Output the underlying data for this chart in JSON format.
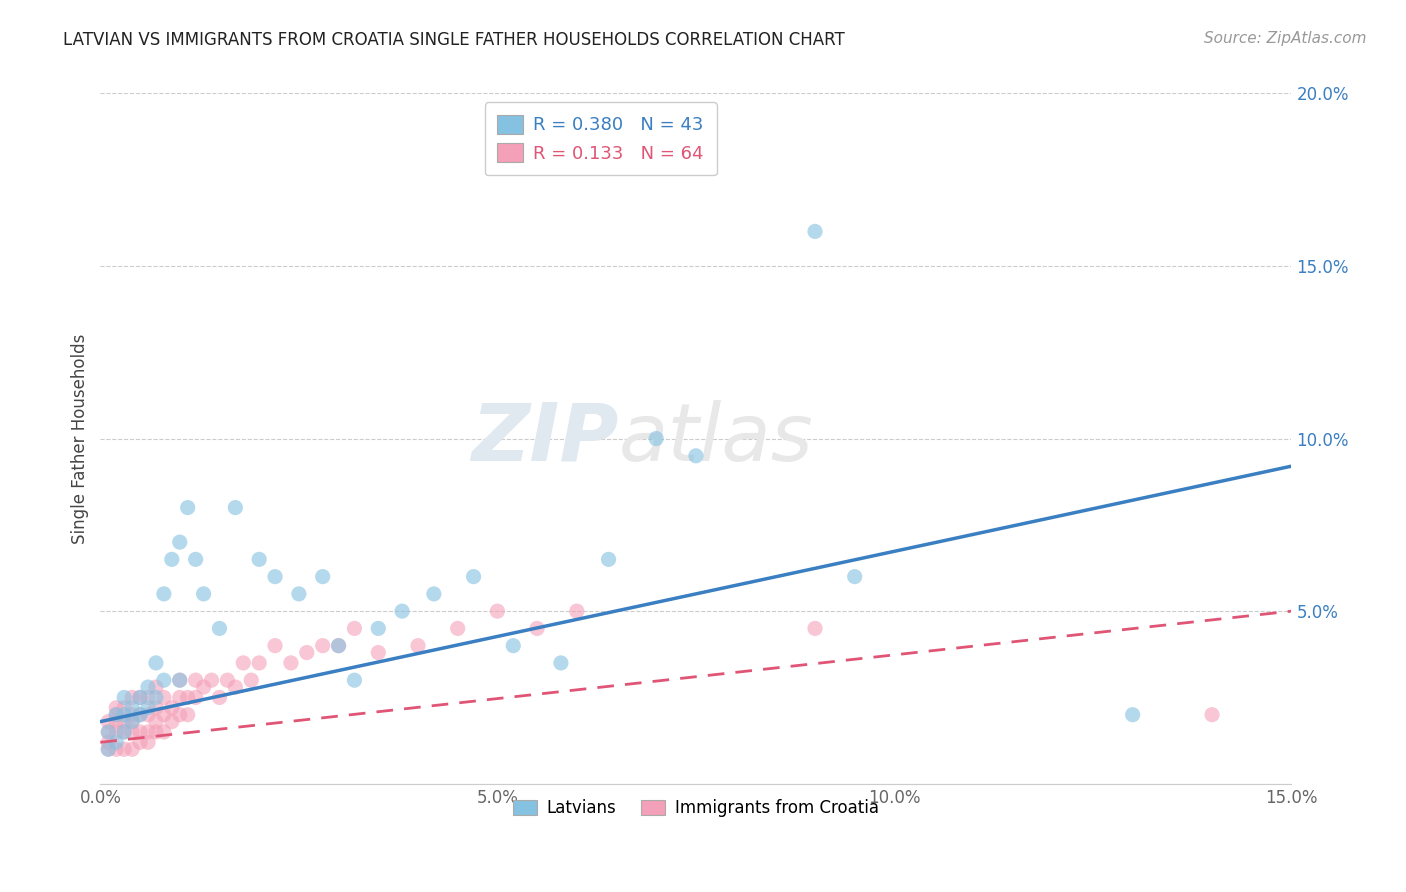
{
  "title": "LATVIAN VS IMMIGRANTS FROM CROATIA SINGLE FATHER HOUSEHOLDS CORRELATION CHART",
  "source": "Source: ZipAtlas.com",
  "ylabel": "Single Father Households",
  "xlim": [
    0.0,
    0.15
  ],
  "ylim": [
    0.0,
    0.2
  ],
  "xticks": [
    0.0,
    0.05,
    0.1,
    0.15
  ],
  "xticklabels": [
    "0.0%",
    "5.0%",
    "10.0%",
    "15.0%"
  ],
  "yticks": [
    0.05,
    0.1,
    0.15,
    0.2
  ],
  "yticklabels": [
    "5.0%",
    "10.0%",
    "15.0%",
    "20.0%"
  ],
  "latvian_color": "#85c1e0",
  "croatia_color": "#f4a0b8",
  "latvian_line_color": "#3a7fc1",
  "croatia_line_color": "#e05575",
  "R_latvian": 0.38,
  "N_latvian": 43,
  "R_croatia": 0.133,
  "N_croatia": 64,
  "legend_label_latvian": "Latvians",
  "legend_label_croatia": "Immigrants from Croatia",
  "watermark_zip": "ZIP",
  "watermark_atlas": "atlas",
  "latvian_x": [
    0.001,
    0.001,
    0.002,
    0.002,
    0.003,
    0.003,
    0.003,
    0.004,
    0.004,
    0.005,
    0.005,
    0.006,
    0.006,
    0.007,
    0.007,
    0.008,
    0.008,
    0.009,
    0.01,
    0.01,
    0.011,
    0.012,
    0.013,
    0.015,
    0.017,
    0.02,
    0.022,
    0.025,
    0.028,
    0.03,
    0.032,
    0.035,
    0.038,
    0.042,
    0.047,
    0.052,
    0.058,
    0.064,
    0.07,
    0.075,
    0.09,
    0.095,
    0.13
  ],
  "latvian_y": [
    0.01,
    0.015,
    0.012,
    0.02,
    0.015,
    0.02,
    0.025,
    0.018,
    0.022,
    0.02,
    0.025,
    0.022,
    0.028,
    0.025,
    0.035,
    0.03,
    0.055,
    0.065,
    0.03,
    0.07,
    0.08,
    0.065,
    0.055,
    0.045,
    0.08,
    0.065,
    0.06,
    0.055,
    0.06,
    0.04,
    0.03,
    0.045,
    0.05,
    0.055,
    0.06,
    0.04,
    0.035,
    0.065,
    0.1,
    0.095,
    0.16,
    0.06,
    0.02
  ],
  "croatia_x": [
    0.001,
    0.001,
    0.001,
    0.001,
    0.002,
    0.002,
    0.002,
    0.002,
    0.002,
    0.003,
    0.003,
    0.003,
    0.003,
    0.004,
    0.004,
    0.004,
    0.004,
    0.004,
    0.005,
    0.005,
    0.005,
    0.005,
    0.006,
    0.006,
    0.006,
    0.006,
    0.007,
    0.007,
    0.007,
    0.007,
    0.008,
    0.008,
    0.008,
    0.009,
    0.009,
    0.01,
    0.01,
    0.01,
    0.011,
    0.011,
    0.012,
    0.012,
    0.013,
    0.014,
    0.015,
    0.016,
    0.017,
    0.018,
    0.019,
    0.02,
    0.022,
    0.024,
    0.026,
    0.028,
    0.03,
    0.032,
    0.035,
    0.04,
    0.045,
    0.05,
    0.055,
    0.06,
    0.09,
    0.14
  ],
  "croatia_y": [
    0.01,
    0.012,
    0.015,
    0.018,
    0.01,
    0.015,
    0.018,
    0.02,
    0.022,
    0.01,
    0.015,
    0.018,
    0.022,
    0.01,
    0.015,
    0.018,
    0.02,
    0.025,
    0.012,
    0.015,
    0.02,
    0.025,
    0.012,
    0.015,
    0.02,
    0.025,
    0.015,
    0.018,
    0.022,
    0.028,
    0.015,
    0.02,
    0.025,
    0.018,
    0.022,
    0.02,
    0.025,
    0.03,
    0.02,
    0.025,
    0.025,
    0.03,
    0.028,
    0.03,
    0.025,
    0.03,
    0.028,
    0.035,
    0.03,
    0.035,
    0.04,
    0.035,
    0.038,
    0.04,
    0.04,
    0.045,
    0.038,
    0.04,
    0.045,
    0.05,
    0.045,
    0.05,
    0.045,
    0.02
  ],
  "line_latvian_x0": 0.0,
  "line_latvian_y0": 0.018,
  "line_latvian_x1": 0.15,
  "line_latvian_y1": 0.092,
  "line_croatia_x0": 0.0,
  "line_croatia_y0": 0.012,
  "line_croatia_x1": 0.15,
  "line_croatia_y1": 0.05
}
